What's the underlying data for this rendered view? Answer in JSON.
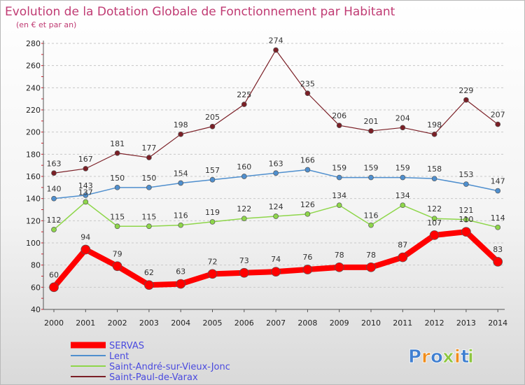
{
  "chart_data": {
    "type": "line",
    "title": "Evolution de la Dotation Globale de Fonctionnement par Habitant",
    "subtitle": "(en € et par an)",
    "xlabel": "",
    "ylabel": "",
    "ylim": [
      40,
      280
    ],
    "yticks": [
      40,
      60,
      80,
      100,
      120,
      140,
      160,
      180,
      200,
      220,
      240,
      260,
      280
    ],
    "grid": "horizontal dashed",
    "legend_position": "bottom-left",
    "x": [
      "2000",
      "2001",
      "2002",
      "2003",
      "2004",
      "2005",
      "2006",
      "2007",
      "2008",
      "2009",
      "2010",
      "2011",
      "2012",
      "2013",
      "2014"
    ],
    "series": [
      {
        "name": "SERVAS",
        "color": "#ff0000",
        "values": [
          60,
          94,
          79,
          62,
          63,
          72,
          73,
          74,
          76,
          78,
          78,
          87,
          107,
          110,
          83
        ]
      },
      {
        "name": "Lent",
        "color": "#4f8fce",
        "values": [
          140,
          143,
          150,
          150,
          154,
          157,
          160,
          163,
          166,
          159,
          159,
          159,
          158,
          153,
          147
        ]
      },
      {
        "name": "Saint-André-sur-Vieux-Jonc",
        "color": "#8ed64a",
        "values": [
          112,
          137,
          115,
          115,
          116,
          119,
          122,
          124,
          126,
          134,
          116,
          134,
          122,
          121,
          114
        ]
      },
      {
        "name": "Saint-Paul-de-Varax",
        "color": "#7b1f26",
        "values": [
          163,
          167,
          181,
          177,
          198,
          205,
          225,
          274,
          235,
          206,
          201,
          204,
          198,
          229,
          207
        ]
      }
    ]
  },
  "legend_text_color": "#4a4adf",
  "logo": {
    "letters": [
      "P",
      "r",
      "o",
      "x",
      "i",
      "t",
      "i"
    ],
    "colors": [
      "#3f7fd1",
      "#f08c1a",
      "#3f7fd1",
      "#8dc63f",
      "#f08c1a",
      "#3f7fd1",
      "#8dc63f"
    ]
  }
}
